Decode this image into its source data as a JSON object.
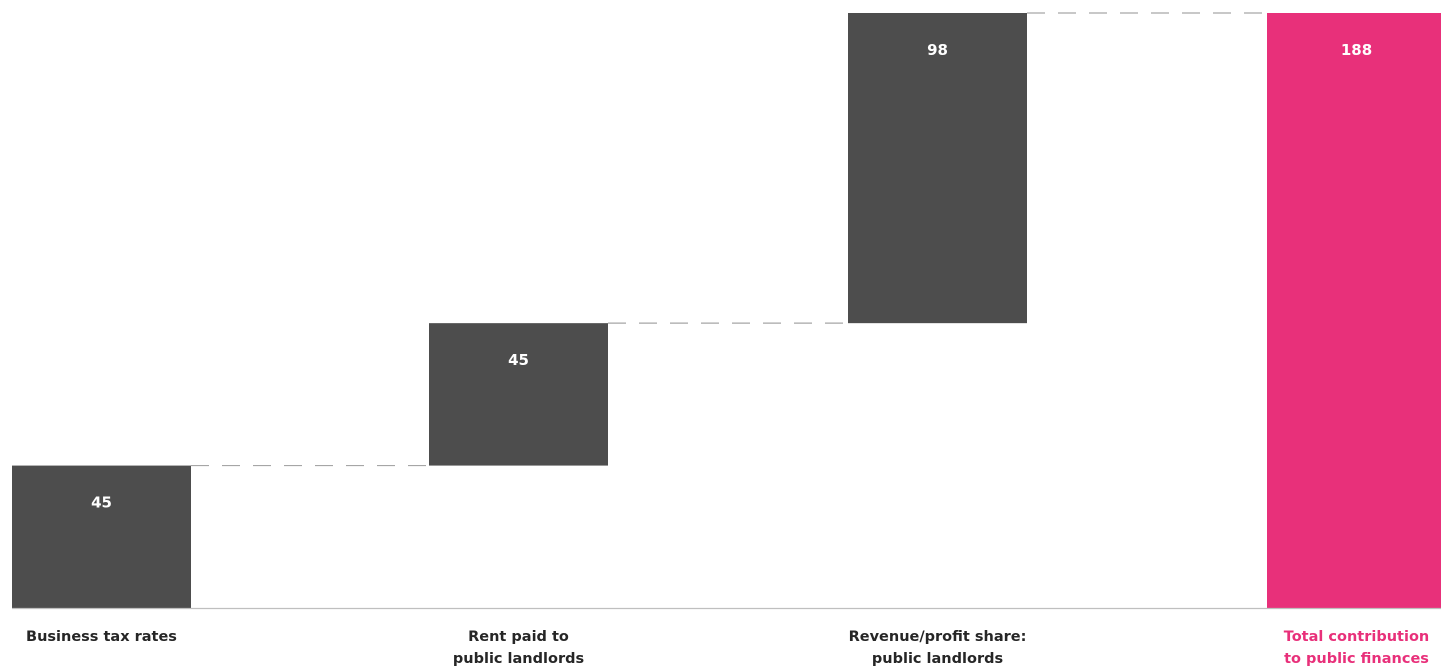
{
  "chart_data": {
    "type": "bar",
    "variant": "waterfall",
    "title": "",
    "xlabel": "",
    "ylabel": "",
    "ylim": [
      0,
      188
    ],
    "grid": false,
    "legend": "none",
    "categories": [
      [
        "Business tax rates"
      ],
      [
        "Rent paid to",
        "public landlords"
      ],
      [
        "Revenue/profit share:",
        "public landlords"
      ],
      [
        "Total contribution",
        "to public finances"
      ]
    ],
    "values": [
      45,
      45,
      98,
      188
    ],
    "value_labels": [
      "45",
      "45",
      "98",
      "188"
    ],
    "is_total": [
      false,
      false,
      false,
      true
    ],
    "colors": {
      "increment": "#4d4d4d",
      "total": "#e8307a",
      "label": "#262626",
      "total_label": "#e8307a",
      "value_text": "#ffffff",
      "connector": "#a6a6a6",
      "baseline": "#bfbfbf"
    }
  }
}
